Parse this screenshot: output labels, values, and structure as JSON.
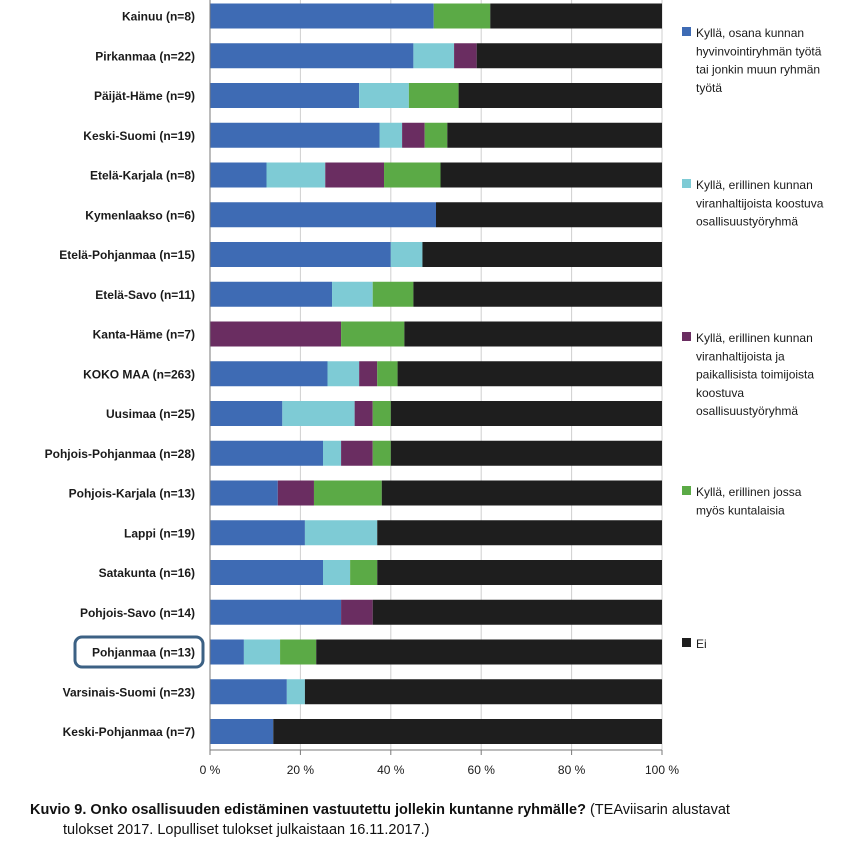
{
  "chart_data": {
    "type": "bar",
    "orientation": "horizontal",
    "stacked": "percent",
    "categories": [
      "Kainuu (n=8)",
      "Pirkanmaa (n=22)",
      "Päijät-Häme (n=9)",
      "Keski-Suomi (n=19)",
      "Etelä-Karjala (n=8)",
      "Kymenlaakso (n=6)",
      "Etelä-Pohjanmaa (n=15)",
      "Etelä-Savo (n=11)",
      "Kanta-Häme (n=7)",
      "KOKO MAA (n=263)",
      "Uusimaa (n=25)",
      "Pohjois-Pohjanmaa (n=28)",
      "Pohjois-Karjala (n=13)",
      "Lappi (n=19)",
      "Satakunta (n=16)",
      "Pohjois-Savo (n=14)",
      "Pohjanmaa (n=13)",
      "Varsinais-Suomi (n=23)",
      "Keski-Pohjanmaa (n=7)"
    ],
    "highlighted_category": "Pohjanmaa (n=13)",
    "series": [
      {
        "name": "Kyllä, osana kunnan hyvinvointiryhmän työtä tai jonkin muun ryhmän työtä",
        "color": "#3E6BB4",
        "values": [
          49.5,
          45,
          33,
          37.5,
          12.5,
          50,
          40,
          27,
          0,
          26,
          16,
          25,
          15,
          21,
          25,
          29,
          7.5,
          17,
          14
        ]
      },
      {
        "name": "Kyllä, erillinen kunnan viranhaltijoista koostuva osallisuustyöryhmä",
        "color": "#7ECBD5",
        "values": [
          0,
          9,
          11,
          5,
          13,
          0,
          7,
          9,
          0,
          7,
          16,
          4,
          0,
          16,
          6,
          0,
          8,
          4,
          0
        ]
      },
      {
        "name": "Kyllä, erillinen kunnan viranhaltijoista ja paikallisista toimijoista koostuva osallisuustyöryhmä",
        "color": "#6A2D61",
        "values": [
          0,
          5,
          0,
          5,
          13,
          0,
          0,
          0,
          29,
          4,
          4,
          7,
          8,
          0,
          0,
          7,
          0,
          0,
          0
        ]
      },
      {
        "name": "Kyllä, erillinen jossa myös kuntalaisia",
        "color": "#5BAA46",
        "values": [
          12.5,
          0,
          11,
          5,
          12.5,
          0,
          0,
          9,
          14,
          4.5,
          4,
          4,
          15,
          0,
          6,
          0,
          8,
          0,
          0
        ]
      },
      {
        "name": "Ei",
        "color": "#1E1E1E",
        "values": [
          38,
          41,
          45,
          47.5,
          49,
          50,
          53,
          55,
          57,
          58.5,
          60,
          60,
          62,
          63,
          63,
          64,
          76.5,
          79,
          86
        ]
      }
    ],
    "x_ticks": [
      "0 %",
      "20 %",
      "40 %",
      "60 %",
      "80 %",
      "100 %"
    ],
    "xlim": [
      0,
      100
    ],
    "grid": true,
    "legend_position": "right"
  },
  "legend_items": [
    {
      "lines": [
        "Kyllä, osana kunnan",
        "hyvinvointiryhmän työtä",
        "tai jonkin muun ryhmän",
        "työtä"
      ]
    },
    {
      "lines": [
        "Kyllä, erillinen kunnan",
        "viranhaltijoista koostuva",
        "osallisuustyöryhmä"
      ]
    },
    {
      "lines": [
        "Kyllä, erillinen kunnan",
        "viranhaltijoista ja",
        "paikallisista toimijoista",
        "koostuva",
        "osallisuustyöryhmä"
      ]
    },
    {
      "lines": [
        "Kyllä, erillinen jossa",
        "myös kuntalaisia"
      ]
    },
    {
      "lines": [
        "Ei"
      ]
    }
  ],
  "caption": {
    "bold": "Kuvio 9. Onko osallisuuden edistäminen vastuutettu jollekin kuntanne ryhmälle?",
    "normal": " (TEAviisarin alustavat",
    "line2": "tulokset 2017. Lopulliset tulokset julkaistaan 16.11.2017.)"
  }
}
